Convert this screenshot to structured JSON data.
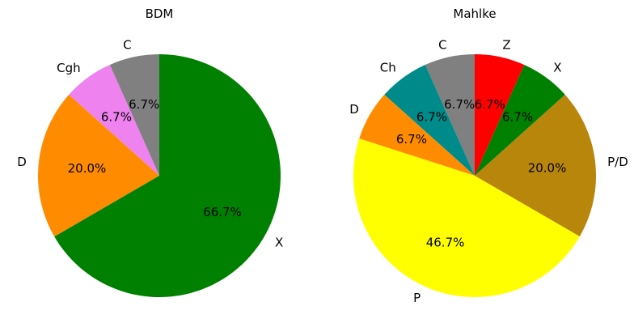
{
  "chart_data": [
    {
      "type": "pie",
      "title": "BDM",
      "start_angle_deg": 90,
      "direction": "counterclockwise",
      "slices": [
        {
          "label": "C",
          "value": 6.7,
          "pct_label": "6.7%",
          "color": "#808080"
        },
        {
          "label": "Cgh",
          "value": 6.7,
          "pct_label": "6.7%",
          "color": "#ee82ee"
        },
        {
          "label": "D",
          "value": 20.0,
          "pct_label": "20.0%",
          "color": "#ff8c00"
        },
        {
          "label": "X",
          "value": 66.7,
          "pct_label": "66.7%",
          "color": "#008000"
        }
      ]
    },
    {
      "type": "pie",
      "title": "Mahlke",
      "start_angle_deg": 90,
      "direction": "counterclockwise",
      "slices": [
        {
          "label": "C",
          "value": 6.7,
          "pct_label": "6.7%",
          "color": "#808080"
        },
        {
          "label": "Ch",
          "value": 6.7,
          "pct_label": "6.7%",
          "color": "#008b8b"
        },
        {
          "label": "D",
          "value": 6.7,
          "pct_label": "6.7%",
          "color": "#ff8c00"
        },
        {
          "label": "P",
          "value": 46.7,
          "pct_label": "46.7%",
          "color": "#ffff00"
        },
        {
          "label": "P/D",
          "value": 20.0,
          "pct_label": "20.0%",
          "color": "#b8860b"
        },
        {
          "label": "X",
          "value": 6.7,
          "pct_label": "6.7%",
          "color": "#008000"
        },
        {
          "label": "Z",
          "value": 6.7,
          "pct_label": "6.7%",
          "color": "#ff0000"
        }
      ]
    }
  ]
}
